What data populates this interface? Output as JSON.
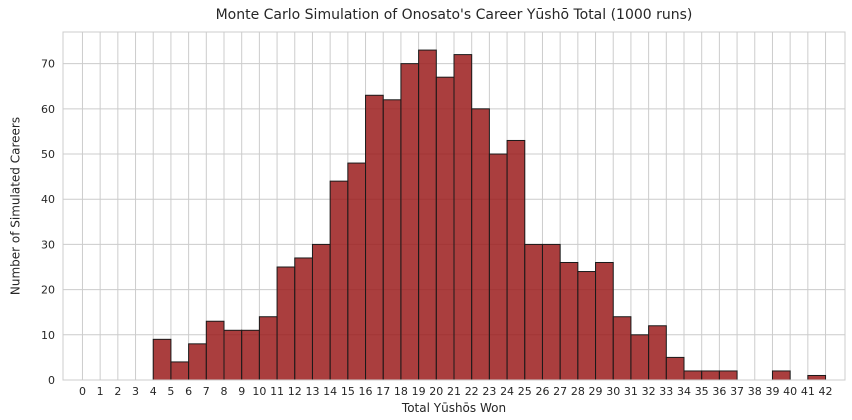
{
  "chart_data": {
    "type": "bar",
    "title": "Monte Carlo Simulation of Onosato's Career Yūshō Total (1000 runs)",
    "xlabel": "Total Yūshōs Won",
    "ylabel": "Number of Simulated Careers",
    "ylim": [
      0,
      77
    ],
    "yticks": [
      0,
      10,
      20,
      30,
      40,
      50,
      60,
      70
    ],
    "grid": true,
    "categories": [
      "0",
      "1",
      "2",
      "3",
      "4",
      "5",
      "6",
      "7",
      "8",
      "9",
      "10",
      "11",
      "12",
      "13",
      "14",
      "15",
      "16",
      "17",
      "18",
      "19",
      "20",
      "21",
      "22",
      "23",
      "24",
      "25",
      "26",
      "27",
      "28",
      "29",
      "30",
      "31",
      "32",
      "33",
      "34",
      "35",
      "36",
      "37",
      "38",
      "39",
      "40",
      "41",
      "42"
    ],
    "values": [
      0,
      0,
      0,
      0,
      9,
      4,
      8,
      13,
      11,
      11,
      14,
      25,
      27,
      30,
      44,
      48,
      63,
      62,
      70,
      73,
      67,
      72,
      60,
      50,
      53,
      30,
      30,
      26,
      24,
      26,
      14,
      10,
      12,
      5,
      2,
      2,
      2,
      0,
      0,
      2,
      0,
      1,
      0
    ],
    "bar_color": "#9b1c1c",
    "edge_color": "#1a1a1a",
    "grid_color": "#cccccc"
  }
}
